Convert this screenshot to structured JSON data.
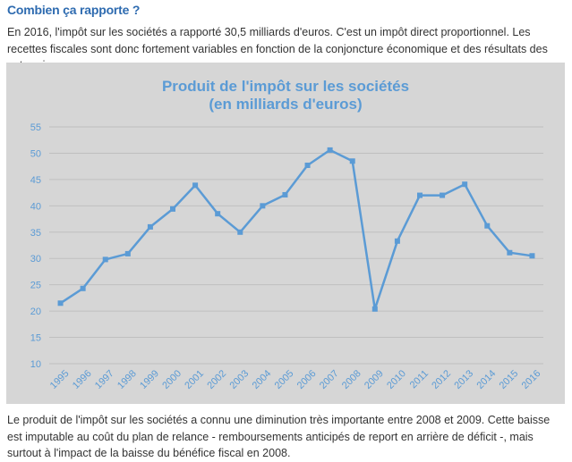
{
  "heading": "Combien ça rapporte ?",
  "intro_text": "En 2016, l'impôt sur les sociétés a rapporté 30,5 milliards d'euros. C'est un impôt direct proportionnel. Les recettes fiscales sont donc fortement variables en fonction de la conjoncture économique et des résultats des entreprises.",
  "outro_text": "Le produit de l'impôt sur les sociétés a connu une diminution très importante entre 2008 et 2009. Cette baisse est imputable au coût du plan de relance - remboursements anticipés de report en arrière de déficit -, mais surtout à l'impact de la baisse du bénéfice fiscal en 2008.",
  "chart_data": {
    "type": "line",
    "title": "Produit de l'impôt sur les sociétés",
    "subtitle": "(en milliards d'euros)",
    "xlabel": "",
    "ylabel": "",
    "categories": [
      "1995",
      "1996",
      "1997",
      "1998",
      "1999",
      "2000",
      "2001",
      "2002",
      "2003",
      "2004",
      "2005",
      "2006",
      "2007",
      "2008",
      "2009",
      "2010",
      "2011",
      "2012",
      "2013",
      "2014",
      "2015",
      "2016"
    ],
    "series": [
      {
        "name": "Produit de l'impôt sur les sociétés",
        "values": [
          21.5,
          24.3,
          29.8,
          30.9,
          36.0,
          39.4,
          43.9,
          38.5,
          35.0,
          40.0,
          42.1,
          47.7,
          50.6,
          48.5,
          20.4,
          33.3,
          42.0,
          42.0,
          44.1,
          36.2,
          31.1,
          30.5
        ]
      }
    ],
    "ylim": [
      10,
      55
    ],
    "yticks": [
      "10",
      "15",
      "20",
      "25",
      "30",
      "35",
      "40",
      "45",
      "50",
      "55"
    ],
    "grid": true,
    "legend": "none",
    "colors": {
      "line": "#5b9bd5",
      "grid": "#bfbfbf",
      "text": "#5b9bd5",
      "background": "#d6d6d6"
    }
  }
}
